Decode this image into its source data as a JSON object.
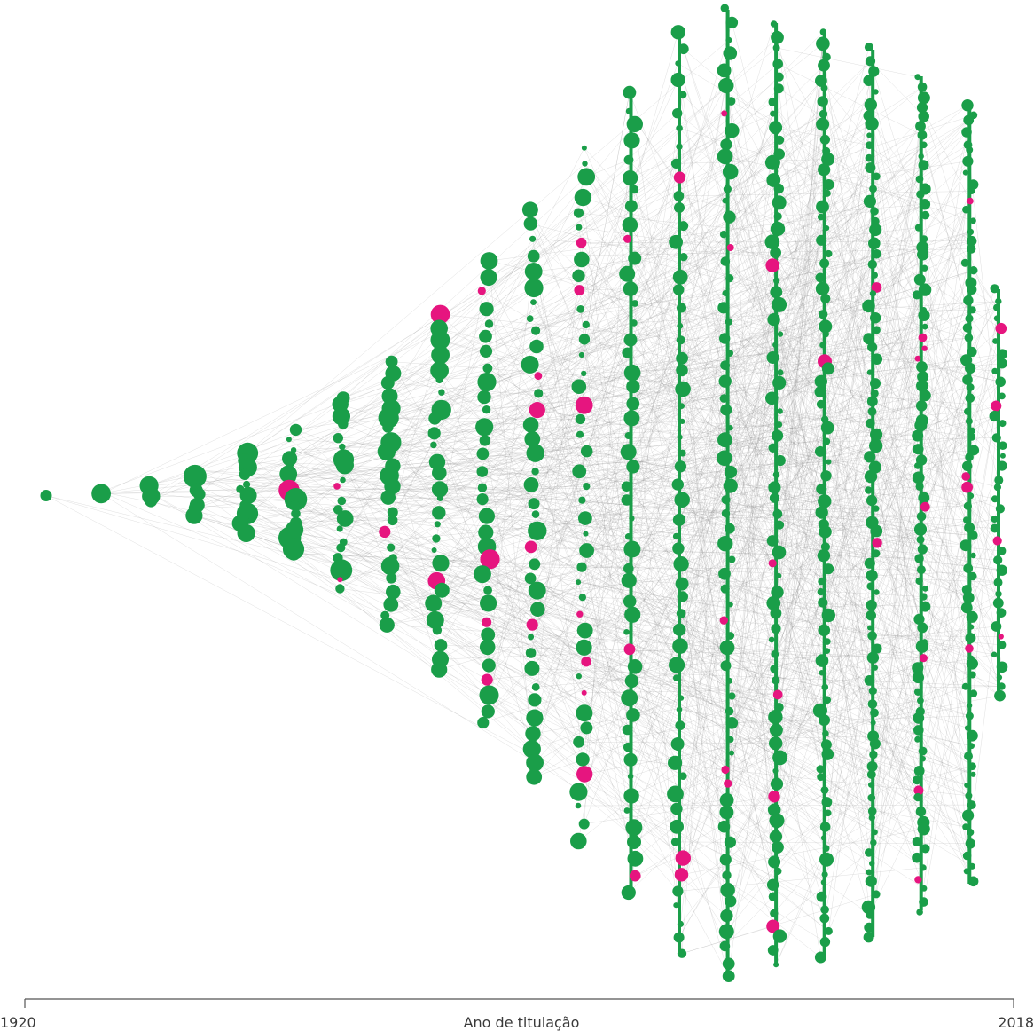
{
  "chart_data": {
    "type": "network",
    "xlabel": "Ano de titulação",
    "xlim": [
      1920,
      2018
    ],
    "tick_labels": [
      "1920",
      "2018"
    ],
    "node_colors": {
      "default": "#1a9e49",
      "highlight": "#e6157f",
      "edge": "#8c8c8c"
    },
    "columns": [
      {
        "year": 1920,
        "ymin": 0,
        "ymax": 0,
        "dot_count": 1
      },
      {
        "year": 1925,
        "ymin": -2,
        "ymax": 2,
        "dot_count": 3
      },
      {
        "year": 1930,
        "ymin": -6,
        "ymax": 6,
        "dot_count": 4
      },
      {
        "year": 1935,
        "ymin": -25,
        "ymax": 25,
        "dot_count": 8
      },
      {
        "year": 1940,
        "ymin": -45,
        "ymax": 45,
        "dot_count": 12
      },
      {
        "year": 1945,
        "ymin": -70,
        "ymax": 70,
        "dot_count": 16
      },
      {
        "year": 1950,
        "ymin": -110,
        "ymax": 110,
        "dot_count": 20
      },
      {
        "year": 1955,
        "ymin": -150,
        "ymax": 150,
        "dot_count": 24
      },
      {
        "year": 1960,
        "ymin": -200,
        "ymax": 200,
        "dot_count": 28
      },
      {
        "year": 1965,
        "ymin": -260,
        "ymax": 260,
        "dot_count": 32
      },
      {
        "year": 1970,
        "ymin": -320,
        "ymax": 320,
        "dot_count": 38
      },
      {
        "year": 1975,
        "ymin": -390,
        "ymax": 390,
        "dot_count": 44
      },
      {
        "year": 1980,
        "ymin": -450,
        "ymax": 450,
        "dot_count": 50
      },
      {
        "year": 1985,
        "ymin": -520,
        "ymax": 520,
        "dot_count": 58
      },
      {
        "year": 1990,
        "ymin": -545,
        "ymax": 545,
        "dot_count": 66
      },
      {
        "year": 1995,
        "ymin": -530,
        "ymax": 530,
        "dot_count": 74
      },
      {
        "year": 2000,
        "ymin": -520,
        "ymax": 520,
        "dot_count": 80
      },
      {
        "year": 2005,
        "ymin": -500,
        "ymax": 500,
        "dot_count": 84
      },
      {
        "year": 2010,
        "ymin": -470,
        "ymax": 470,
        "dot_count": 84
      },
      {
        "year": 2015,
        "ymin": -440,
        "ymax": 440,
        "dot_count": 80
      },
      {
        "year": 2018,
        "ymin": -230,
        "ymax": 230,
        "dot_count": 40
      }
    ]
  }
}
